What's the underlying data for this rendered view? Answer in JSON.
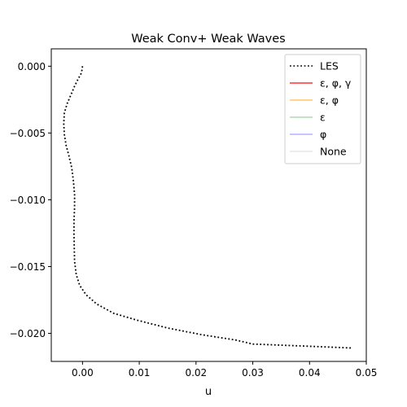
{
  "chart_data": {
    "type": "line",
    "title": "Weak Conv+ Weak Waves",
    "xlabel": "u",
    "ylabel": "",
    "xlim": [
      -0.0055,
      0.05
    ],
    "ylim": [
      -0.0221,
      0.0013
    ],
    "xticks": [
      0.0,
      0.01,
      0.02,
      0.03,
      0.04,
      0.05
    ],
    "xtick_labels": [
      "0.00",
      "0.01",
      "0.02",
      "0.03",
      "0.04",
      "0.05"
    ],
    "yticks": [
      0.0,
      -0.005,
      -0.01,
      -0.015,
      -0.02
    ],
    "ytick_labels": [
      "0.000",
      "−0.005",
      "−0.010",
      "−0.015",
      "−0.020"
    ],
    "grid": false,
    "legend_position": "top-right",
    "series": [
      {
        "name": "LES",
        "color": "#000000",
        "style": "dotted",
        "x": [
          0.0,
          -0.0001,
          -0.0003,
          -0.0007,
          -0.0014,
          -0.002,
          -0.0027,
          -0.0032,
          -0.0033,
          -0.0032,
          -0.0029,
          -0.0024,
          -0.0019,
          -0.0016,
          -0.0014,
          -0.0014,
          -0.0015,
          -0.0015,
          -0.0014,
          -0.0011,
          -0.0005,
          0.0006,
          0.0025,
          0.0055,
          0.0095,
          0.015,
          0.021,
          0.027,
          0.03,
          0.036,
          0.042,
          0.0475
        ],
        "y": [
          0.0,
          -0.0003,
          -0.0006,
          -0.0009,
          -0.0015,
          -0.0021,
          -0.0028,
          -0.0035,
          -0.0043,
          -0.0051,
          -0.0059,
          -0.0067,
          -0.0076,
          -0.0086,
          -0.0096,
          -0.0106,
          -0.0116,
          -0.0126,
          -0.0146,
          -0.0156,
          -0.0164,
          -0.0171,
          -0.0178,
          -0.0185,
          -0.019,
          -0.0196,
          -0.0201,
          -0.0205,
          -0.0208,
          -0.0209,
          -0.021,
          -0.0211
        ]
      },
      {
        "name": "ε, φ, γ",
        "color": "#ff0000",
        "style": "solid",
        "alpha": 0.8,
        "x": [],
        "y": []
      },
      {
        "name": "ε, φ",
        "color": "#ffa500",
        "style": "solid",
        "alpha": 0.6,
        "x": [],
        "y": []
      },
      {
        "name": "ε",
        "color": "#008000",
        "style": "solid",
        "alpha": 0.3,
        "x": [],
        "y": []
      },
      {
        "name": "φ",
        "color": "#0000ff",
        "style": "solid",
        "alpha": 0.3,
        "x": [],
        "y": []
      },
      {
        "name": "None",
        "color": "#808080",
        "style": "solid",
        "alpha": 0.2,
        "x": [],
        "y": []
      }
    ]
  }
}
